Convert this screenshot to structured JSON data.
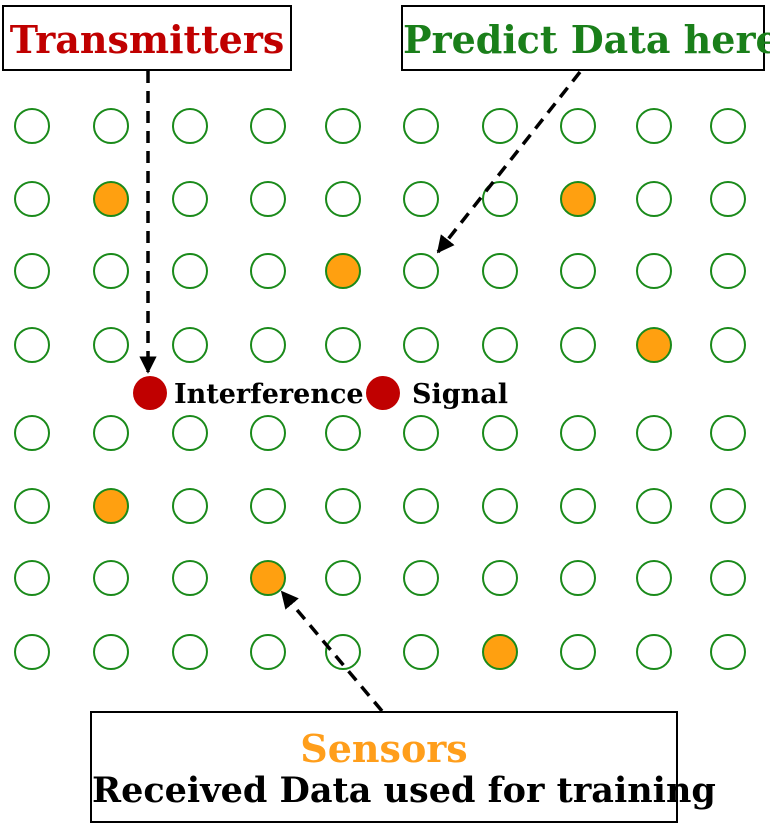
{
  "colors": {
    "transmitter": "#c00000",
    "predict": "#1a7f1a",
    "sensor_fill": "#ffa010",
    "sensor_text": "#ff9e1b",
    "grid_stroke": "#1a8a1a",
    "arrow": "#000000"
  },
  "boxes": {
    "transmitters": {
      "title": "Transmitters"
    },
    "predict": {
      "title": "Predict Data here"
    },
    "sensors": {
      "title": "Sensors",
      "subtitle": "Received Data used for training"
    }
  },
  "transmitters": {
    "interference_label": "Interference",
    "signal_label": "Signal"
  },
  "grid": {
    "columns": 10,
    "rows": 8,
    "sensor_cells": [
      [
        1,
        1
      ],
      [
        1,
        7
      ],
      [
        2,
        4
      ],
      [
        3,
        8
      ],
      [
        5,
        1
      ],
      [
        6,
        3
      ],
      [
        7,
        6
      ]
    ]
  }
}
